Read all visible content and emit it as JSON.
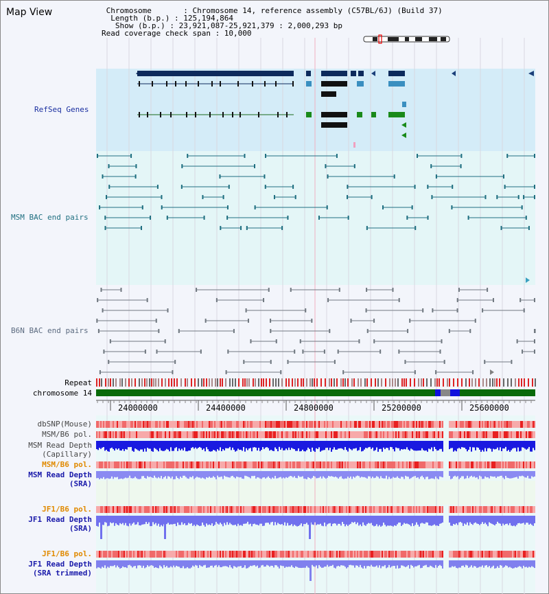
{
  "title": "Map View",
  "header": {
    "chromosome_line": " Chromosome       : Chromosome 14, reference assembly (C57BL/6J) (Build 37)",
    "length_line": "  Length (b.p.) : 125,194,864",
    "show_line": "   Show (b.p.) : 23,921,087-25,921,379 : 2,000,293 bp",
    "coverage_line": "Read coverage check span : 10,000"
  },
  "tracks": {
    "refseq": {
      "label": "RefSeq Genes",
      "color": "#1a2fa0"
    },
    "msm_bac": {
      "label": "MSM BAC end pairs",
      "color": "#1f6f80"
    },
    "b6n_bac": {
      "label": "B6N BAC end pairs",
      "color": "#5c6b80"
    },
    "repeat": {
      "label": "Repeat"
    },
    "chromosome": {
      "label": "chromosome 14"
    },
    "dbsnp": {
      "label": "dbSNP(Mouse)",
      "color": "#444"
    },
    "msm_b6_pol": {
      "label": "MSM/B6 pol.",
      "color": "#444"
    },
    "msm_depth_cap": {
      "label_1": "MSM Read Depth",
      "label_2": "(Capillary)",
      "color": "#444"
    },
    "msm_b6_pol_2": {
      "label": "MSM/B6 pol.",
      "color": "#e08a00"
    },
    "msm_depth_sra": {
      "label_1": "MSM Read Depth",
      "label_2": "(SRA)",
      "color": "#1a1aaa"
    },
    "jf1_b6_pol": {
      "label": "JF1/B6 pol.",
      "color": "#e08a00"
    },
    "jf1_depth_sra": {
      "label_1": "JF1 Read Depth",
      "label_2": "(SRA)",
      "color": "#1a1aaa"
    },
    "jf1_b6_pol_2": {
      "label": "JF1/B6 pol.",
      "color": "#e08a00"
    },
    "jf1_depth_trim": {
      "label_1": "JF1 Read Depth",
      "label_2": "(SRA trimmed)",
      "color": "#1a1aaa"
    }
  },
  "axis": {
    "ticks": [
      "24000000",
      "24400000",
      "24800000",
      "25200000",
      "25600000"
    ]
  },
  "colors": {
    "refseq_bg": "#d4ecf8",
    "msm_bg": "#e4f6f7",
    "b6n_bg": "#f3f5fb",
    "chromosome_bar": "#0a6a0a",
    "snp_red": "#ee3333",
    "depth_blue": "#2222ee",
    "depth_light": "#8888f0"
  }
}
